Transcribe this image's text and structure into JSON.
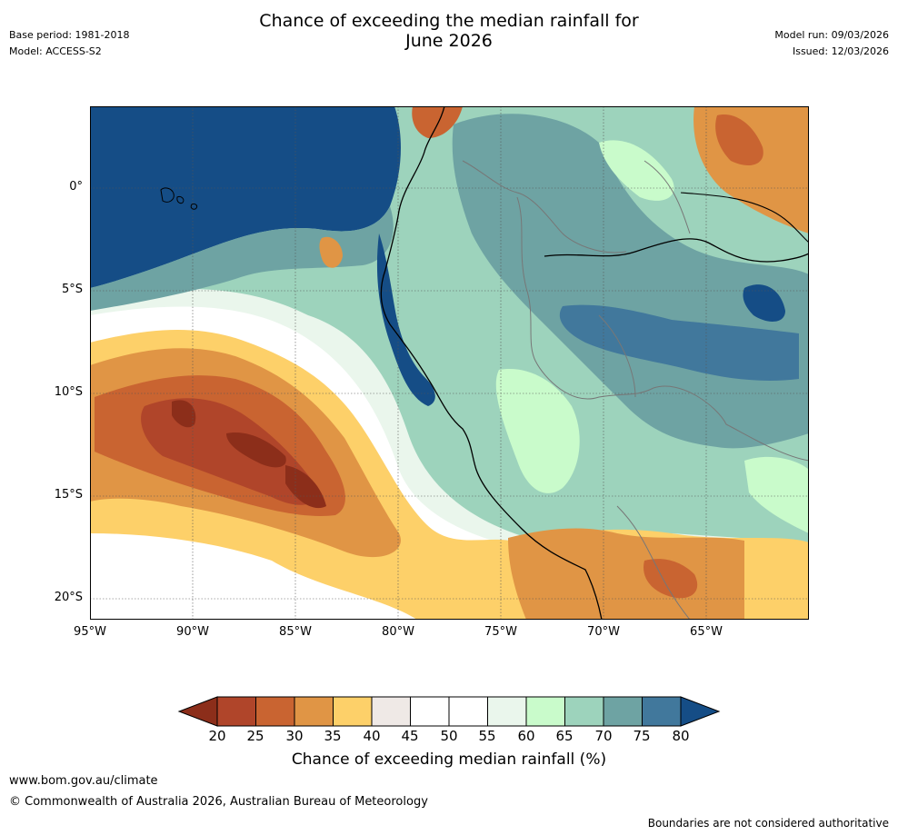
{
  "header": {
    "title_line1": "Chance of exceeding the median rainfall for",
    "title_line2": "June 2026",
    "base_period": "Base period: 1981-2018",
    "model": "Model: ACCESS-S2",
    "model_run": "Model run: 09/03/2026",
    "issued": "Issued: 12/03/2026"
  },
  "map": {
    "lat_labels": [
      "0°",
      "5°S",
      "10°S",
      "15°S",
      "20°S"
    ],
    "lon_labels": [
      "95°W",
      "90°W",
      "85°W",
      "80°W",
      "75°W",
      "70°W",
      "65°W"
    ]
  },
  "colorbar": {
    "ticks": [
      "20",
      "25",
      "30",
      "35",
      "40",
      "45",
      "50",
      "55",
      "60",
      "65",
      "70",
      "75",
      "80"
    ],
    "label": "Chance of exceeding median rainfall (%)",
    "colors": [
      "#8c2e1a",
      "#b0452a",
      "#c96431",
      "#e09545",
      "#fdd069",
      "#efe9e6",
      "#ffffff",
      "#ffffff",
      "#eaf6ec",
      "#c9fbcb",
      "#9dd3bc",
      "#6ea3a3",
      "#41789c",
      "#154d86"
    ]
  },
  "footer": {
    "website": "www.bom.gov.au/climate",
    "copyright": "© Commonwealth of Australia 2026, Australian Bureau of Meteorology",
    "disclaimer": "Boundaries are not considered authoritative"
  }
}
